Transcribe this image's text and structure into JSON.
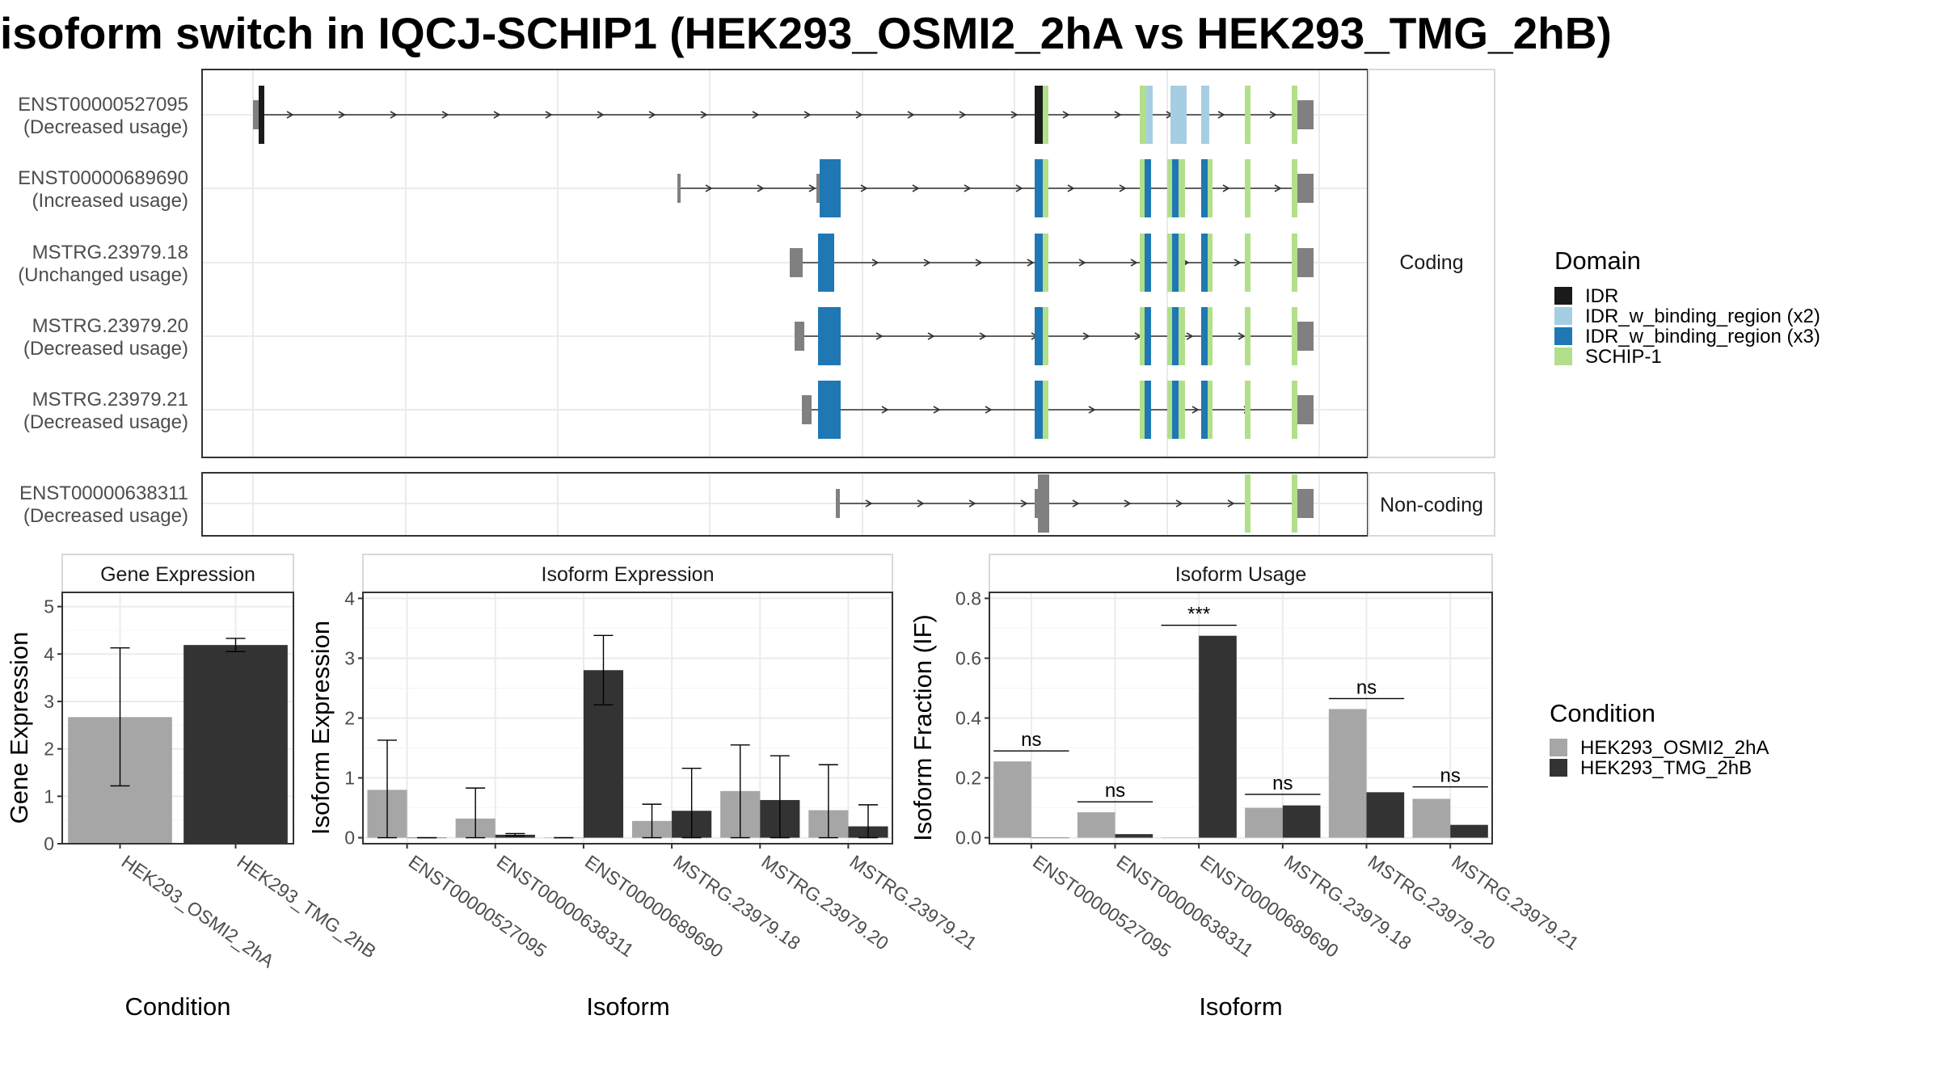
{
  "title": "isoform switch in IQCJ-SCHIP1 (HEK293_OSMI2_2hA vs HEK293_TMG_2hB)",
  "colors": {
    "IDR": "#1a1a1a",
    "IDR_w_binding_region (x2)": "#a6cee3",
    "IDR_w_binding_region (x3)": "#1f78b4",
    "SCHIP-1": "#b2df8a",
    "utr": "#808080",
    "HEK293_OSMI2_2hA": "#a6a6a6",
    "HEK293_TMG_2hB": "#333333"
  },
  "legend_domain": {
    "title": "Domain",
    "items": [
      "IDR",
      "IDR_w_binding_region (x2)",
      "IDR_w_binding_region (x3)",
      "SCHIP-1"
    ]
  },
  "legend_condition": {
    "title": "Condition",
    "items": [
      "HEK293_OSMI2_2hA",
      "HEK293_TMG_2hB"
    ]
  },
  "facets": {
    "coding": "Coding",
    "noncoding": "Non-coding"
  },
  "transcripts": [
    {
      "id": "ENST00000527095",
      "usage": "(Decreased usage)",
      "group": "coding"
    },
    {
      "id": "ENST00000689690",
      "usage": "(Increased usage)",
      "group": "coding"
    },
    {
      "id": "MSTRG.23979.18",
      "usage": "(Unchanged usage)",
      "group": "coding"
    },
    {
      "id": "MSTRG.23979.20",
      "usage": "(Decreased usage)",
      "group": "coding"
    },
    {
      "id": "MSTRG.23979.21",
      "usage": "(Decreased usage)",
      "group": "coding"
    },
    {
      "id": "ENST00000638311",
      "usage": "(Decreased usage)",
      "group": "noncoding"
    }
  ],
  "chart_data": [
    {
      "type": "bar",
      "title": "Gene Expression",
      "xlabel": "Condition",
      "ylabel": "Gene Expression",
      "ylim": [
        0,
        5.3
      ],
      "yticks": [
        0,
        1,
        2,
        3,
        4,
        5
      ],
      "categories": [
        "HEK293_OSMI2_2hA",
        "HEK293_TMG_2hB"
      ],
      "values": [
        2.67,
        4.19
      ],
      "error_low": [
        1.22,
        4.05
      ],
      "error_high": [
        4.13,
        4.33
      ]
    },
    {
      "type": "bar",
      "title": "Isoform Expression",
      "xlabel": "Isoform",
      "ylabel": "Isoform Expression",
      "ylim": [
        -0.1,
        4.1
      ],
      "yticks": [
        0,
        1,
        2,
        3,
        4
      ],
      "categories": [
        "ENST00000527095",
        "ENST00000638311",
        "ENST00000689690",
        "MSTRG.23979.18",
        "MSTRG.23979.20",
        "MSTRG.23979.21"
      ],
      "series": [
        {
          "name": "HEK293_OSMI2_2hA",
          "values": [
            0.8,
            0.32,
            0.0,
            0.28,
            0.78,
            0.46
          ],
          "error_low": [
            0.0,
            0.0,
            0.0,
            0.0,
            0.0,
            0.0
          ],
          "error_high": [
            1.63,
            0.83,
            0.0,
            0.56,
            1.55,
            1.22
          ]
        },
        {
          "name": "HEK293_TMG_2hB",
          "values": [
            0.0,
            0.05,
            2.8,
            0.45,
            0.63,
            0.19
          ],
          "error_low": [
            0.0,
            0.03,
            2.22,
            0.0,
            0.0,
            0.0
          ],
          "error_high": [
            0.0,
            0.07,
            3.38,
            1.16,
            1.37,
            0.55
          ]
        }
      ]
    },
    {
      "type": "bar",
      "title": "Isoform Usage",
      "xlabel": "Isoform",
      "ylabel": "Isoform Fraction (IF)",
      "ylim": [
        -0.02,
        0.82
      ],
      "yticks": [
        0.0,
        0.2,
        0.4,
        0.6,
        0.8
      ],
      "categories": [
        "ENST00000527095",
        "ENST00000638311",
        "ENST00000689690",
        "MSTRG.23979.18",
        "MSTRG.23979.20",
        "MSTRG.23979.21"
      ],
      "series": [
        {
          "name": "HEK293_OSMI2_2hA",
          "values": [
            0.255,
            0.085,
            0.0,
            0.1,
            0.43,
            0.13
          ]
        },
        {
          "name": "HEK293_TMG_2hB",
          "values": [
            0.0,
            0.012,
            0.675,
            0.108,
            0.152,
            0.043
          ]
        }
      ],
      "significance": [
        "ns",
        "ns",
        "***",
        "ns",
        "ns",
        "ns"
      ],
      "significance_level": [
        0.29,
        0.12,
        0.71,
        0.145,
        0.465,
        0.17
      ]
    }
  ]
}
